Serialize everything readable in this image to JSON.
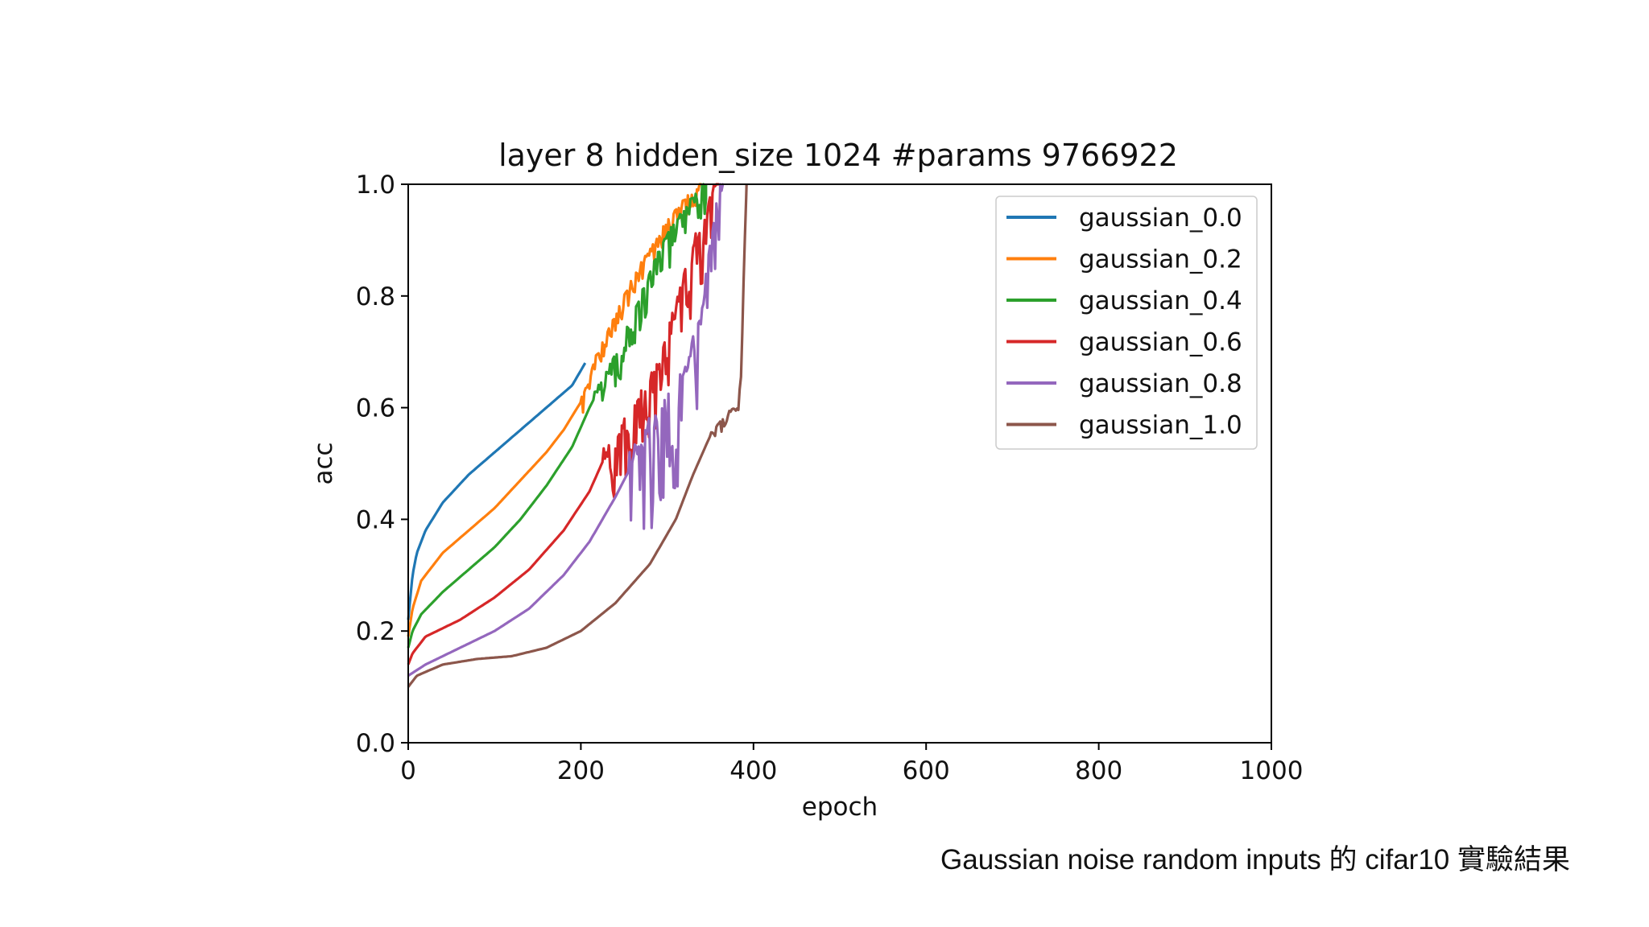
{
  "slide": {
    "caption": "Gaussian noise random inputs 的 cifar10 實驗結果"
  },
  "chart_data": {
    "type": "line",
    "title": "layer 8 hidden_size 1024 #params 9766922",
    "xlabel": "epoch",
    "ylabel": "acc",
    "xlim": [
      0,
      1000
    ],
    "ylim": [
      0.0,
      1.0
    ],
    "x_ticks": [
      0,
      200,
      400,
      600,
      800,
      1000
    ],
    "x_tick_labels": [
      "0",
      "200",
      "400",
      "600",
      "800",
      "1000"
    ],
    "y_ticks": [
      0.0,
      0.2,
      0.4,
      0.6,
      0.8,
      1.0
    ],
    "y_tick_labels": [
      "0.0",
      "0.2",
      "0.4",
      "0.6",
      "0.8",
      "1.0"
    ],
    "grid": false,
    "legend_position": "top-right",
    "series": [
      {
        "name": "gaussian_0.0",
        "color": "#1f77b4",
        "points": [
          [
            0,
            0.22
          ],
          [
            5,
            0.3
          ],
          [
            10,
            0.34
          ],
          [
            20,
            0.38
          ],
          [
            40,
            0.43
          ],
          [
            70,
            0.48
          ],
          [
            100,
            0.52
          ],
          [
            130,
            0.56
          ],
          [
            160,
            0.6
          ],
          [
            190,
            0.64
          ],
          [
            205,
            0.68
          ]
        ]
      },
      {
        "name": "gaussian_0.2",
        "color": "#ff7f0e",
        "points": [
          [
            0,
            0.19
          ],
          [
            5,
            0.24
          ],
          [
            15,
            0.29
          ],
          [
            40,
            0.34
          ],
          [
            70,
            0.38
          ],
          [
            100,
            0.42
          ],
          [
            130,
            0.47
          ],
          [
            160,
            0.52
          ],
          [
            180,
            0.56
          ],
          [
            200,
            0.61
          ],
          [
            220,
            0.7
          ],
          [
            240,
            0.76
          ],
          [
            260,
            0.83
          ],
          [
            280,
            0.88
          ],
          [
            300,
            0.93
          ],
          [
            320,
            0.97
          ],
          [
            340,
            1.0
          ]
        ],
        "noise_start": 200,
        "noise": 0.03
      },
      {
        "name": "gaussian_0.4",
        "color": "#2ca02c",
        "points": [
          [
            0,
            0.17
          ],
          [
            5,
            0.2
          ],
          [
            15,
            0.23
          ],
          [
            40,
            0.27
          ],
          [
            70,
            0.31
          ],
          [
            100,
            0.35
          ],
          [
            130,
            0.4
          ],
          [
            160,
            0.46
          ],
          [
            190,
            0.53
          ],
          [
            210,
            0.6
          ],
          [
            230,
            0.66
          ],
          [
            250,
            0.72
          ],
          [
            270,
            0.8
          ],
          [
            290,
            0.87
          ],
          [
            310,
            0.93
          ],
          [
            330,
            0.97
          ],
          [
            345,
            1.0
          ]
        ],
        "noise_start": 215,
        "noise": 0.06
      },
      {
        "name": "gaussian_0.6",
        "color": "#d62728",
        "points": [
          [
            0,
            0.14
          ],
          [
            5,
            0.16
          ],
          [
            20,
            0.19
          ],
          [
            60,
            0.22
          ],
          [
            100,
            0.26
          ],
          [
            140,
            0.31
          ],
          [
            180,
            0.38
          ],
          [
            210,
            0.45
          ],
          [
            230,
            0.52
          ],
          [
            250,
            0.56
          ],
          [
            270,
            0.61
          ],
          [
            290,
            0.67
          ],
          [
            310,
            0.77
          ],
          [
            330,
            0.88
          ],
          [
            350,
            0.96
          ],
          [
            360,
            1.0
          ]
        ],
        "noise_start": 225,
        "noise": 0.11
      },
      {
        "name": "gaussian_0.8",
        "color": "#9467bd",
        "points": [
          [
            0,
            0.12
          ],
          [
            20,
            0.14
          ],
          [
            60,
            0.17
          ],
          [
            100,
            0.2
          ],
          [
            140,
            0.24
          ],
          [
            180,
            0.3
          ],
          [
            210,
            0.36
          ],
          [
            240,
            0.44
          ],
          [
            260,
            0.5
          ],
          [
            280,
            0.55
          ],
          [
            300,
            0.59
          ],
          [
            320,
            0.64
          ],
          [
            340,
            0.76
          ],
          [
            355,
            0.92
          ],
          [
            365,
            1.0
          ]
        ],
        "noise_start": 255,
        "noise": 0.17
      },
      {
        "name": "gaussian_1.0",
        "color": "#8c564b",
        "points": [
          [
            0,
            0.1
          ],
          [
            10,
            0.12
          ],
          [
            40,
            0.14
          ],
          [
            80,
            0.15
          ],
          [
            120,
            0.155
          ],
          [
            160,
            0.17
          ],
          [
            200,
            0.2
          ],
          [
            240,
            0.25
          ],
          [
            280,
            0.32
          ],
          [
            310,
            0.4
          ],
          [
            330,
            0.48
          ],
          [
            350,
            0.55
          ],
          [
            370,
            0.59
          ],
          [
            382,
            0.6
          ],
          [
            386,
            0.66
          ],
          [
            388,
            0.8
          ],
          [
            392,
            1.0
          ]
        ],
        "noise_start": 350,
        "noise": 0.02
      }
    ]
  }
}
